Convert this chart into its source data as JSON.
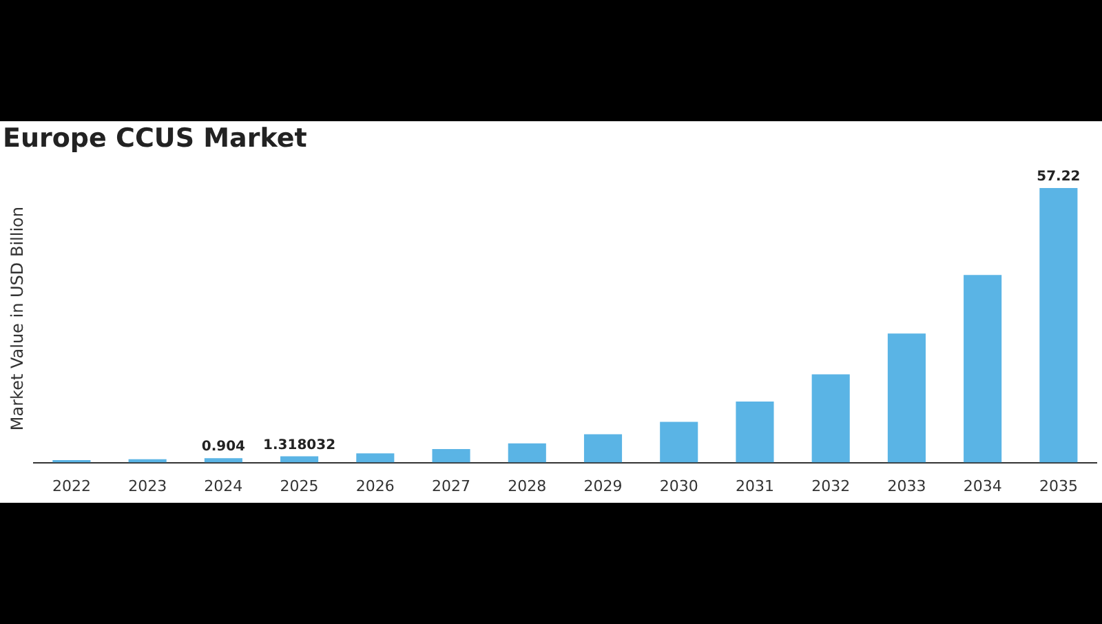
{
  "chart_data": {
    "type": "bar",
    "title": "Europe CCUS Market",
    "ylabel": "Market Value in USD Billion",
    "categories": [
      "2022",
      "2023",
      "2024",
      "2025",
      "2026",
      "2027",
      "2028",
      "2029",
      "2030",
      "2031",
      "2032",
      "2033",
      "2034",
      "2035"
    ],
    "values": [
      0.5,
      0.7,
      0.904,
      1.318032,
      1.9,
      2.8,
      4.0,
      5.9,
      8.5,
      12.7,
      18.4,
      26.9,
      39.1,
      57.22
    ],
    "value_labels": [
      null,
      null,
      "0.904",
      "1.318032",
      null,
      null,
      null,
      null,
      null,
      null,
      null,
      null,
      null,
      "57.22"
    ],
    "color": "#5ab4e5"
  }
}
